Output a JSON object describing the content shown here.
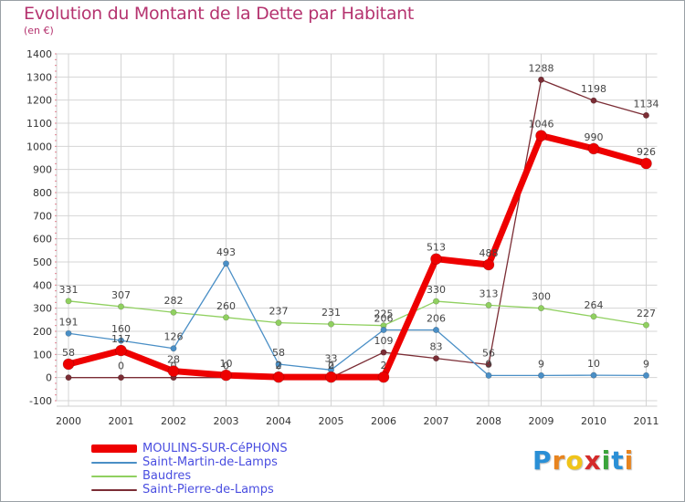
{
  "chart_data": {
    "type": "line",
    "title": "Evolution du Montant de la Dette par Habitant",
    "unit_label": "(en €)",
    "xlabel": "",
    "ylabel": "",
    "x": [
      "2000",
      "2001",
      "2002",
      "2003",
      "2004",
      "2005",
      "2006",
      "2007",
      "2008",
      "2009",
      "2010",
      "2011"
    ],
    "ylim": [
      -100,
      1400
    ],
    "yticks": [
      -100,
      0,
      100,
      200,
      300,
      400,
      500,
      600,
      700,
      800,
      900,
      1000,
      1100,
      1200,
      1300,
      1400
    ],
    "grid": true,
    "legend_position": "bottom-left",
    "series": [
      {
        "name": "Saint-Pierre-de-Lamps",
        "color": "#7b2d35",
        "values": [
          0,
          0,
          0,
          0,
          0,
          0,
          109,
          83,
          56,
          1288,
          1198,
          1134
        ],
        "labels": [
          "0",
          "0",
          "0",
          "0",
          "0",
          "0",
          "109",
          "83",
          "56",
          "1288",
          "1198",
          "1134"
        ]
      },
      {
        "name": "Baudres",
        "color": "#90d060",
        "values": [
          331,
          307,
          282,
          260,
          237,
          231,
          225,
          330,
          313,
          300,
          264,
          227
        ],
        "labels": [
          "331",
          "307",
          "282",
          "260",
          "237",
          "231",
          "225",
          "330",
          "313",
          "300",
          "264",
          "227"
        ]
      },
      {
        "name": "Saint-Martin-de-Lamps",
        "color": "#4a8fc6",
        "values": [
          191,
          160,
          126,
          493,
          58,
          33,
          206,
          206,
          9,
          9,
          10,
          9
        ],
        "labels": [
          "191",
          "160",
          "126",
          "493",
          "58",
          "33",
          "206",
          "206",
          "9",
          "9",
          "10",
          "9"
        ]
      },
      {
        "name": "MOULINS-SUR-CéPHONS",
        "color": "#ee0000",
        "values": [
          58,
          117,
          28,
          10,
          2,
          2,
          2,
          513,
          488,
          1046,
          990,
          926
        ],
        "labels": [
          "58",
          "117",
          "28",
          "10",
          "2",
          "2",
          "2",
          "513",
          "488",
          "1046",
          "990",
          "926"
        ]
      }
    ]
  },
  "legend": [
    {
      "label": "MOULINS-SUR-CéPHONS",
      "color": "#ee0000"
    },
    {
      "label": "Saint-Martin-de-Lamps",
      "color": "#4a8fc6"
    },
    {
      "label": "Baudres",
      "color": "#90d060"
    },
    {
      "label": "Saint-Pierre-de-Lamps",
      "color": "#7b2d35"
    }
  ],
  "brand": {
    "letters": [
      "P",
      "r",
      "o",
      "x",
      "i",
      "t",
      "i"
    ],
    "colors": [
      "#2a8fd6",
      "#e8841f",
      "#f0c419",
      "#d42a2a",
      "#3aa43a",
      "#2a8fd6",
      "#e8841f"
    ]
  }
}
